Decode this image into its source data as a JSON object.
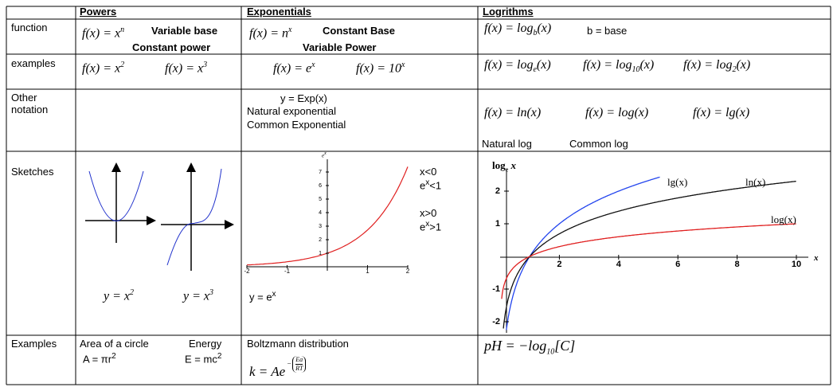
{
  "columns": [
    "Powers",
    "Exponentials",
    "Logrithms"
  ],
  "row_labels": [
    "function",
    "examples",
    "Other notation",
    "Sketches",
    "Examples"
  ],
  "function": {
    "powers": {
      "formula": [
        "f(x) = x",
        "n"
      ],
      "notes": [
        "Variable base",
        "Constant power"
      ]
    },
    "exponentials": {
      "formula": [
        "f(x) = n",
        "x"
      ],
      "notes": [
        "Constant Base",
        "Variable Power"
      ]
    },
    "logarithms": {
      "formula": [
        "f(x) = log",
        "b",
        "(x)"
      ],
      "note": "b = base"
    }
  },
  "examples": {
    "powers": [
      [
        "f(x) = x",
        "2"
      ],
      [
        "f(x) = x",
        "3"
      ]
    ],
    "exponentials": [
      [
        "f(x) = e",
        "x"
      ],
      [
        "f(x) = 10",
        "x"
      ]
    ],
    "logarithms": [
      [
        "f(x) = log",
        "e",
        "(x)"
      ],
      [
        "f(x) = log",
        "10",
        "(x)"
      ],
      [
        "f(x) = log",
        "2",
        "(x)"
      ]
    ]
  },
  "other_notation": {
    "exponentials": [
      "y = Exp(x)",
      "Natural exponential",
      "Common Exponential"
    ],
    "logarithms": {
      "formulas": [
        "f(x) = ln(x)",
        "f(x) = log(x)",
        "f(x) = lg(x)"
      ],
      "labels": [
        "Natural log",
        "Common log"
      ]
    }
  },
  "sketches": {
    "powers": {
      "captions": [
        [
          "y = x",
          "2"
        ],
        [
          "y = x",
          "3"
        ]
      ]
    },
    "exponentials": {
      "axis_label": [
        "e",
        "x"
      ],
      "yticks": [
        1,
        2,
        3,
        4,
        5,
        6,
        7
      ],
      "xticks": [
        -2,
        -1,
        1,
        2
      ],
      "notes": [
        "x<0",
        [
          "e",
          "x",
          "<1"
        ],
        "x>0",
        [
          "e",
          "x",
          ">1"
        ]
      ],
      "caption": [
        "y = e",
        "x"
      ]
    },
    "logarithms": {
      "axis_label": [
        "log",
        "e",
        " x"
      ],
      "yticks": [
        -2,
        -1,
        1,
        2
      ],
      "xticks": [
        2,
        4,
        6,
        8,
        10
      ],
      "x_label": "x",
      "curves": [
        "lg(x)",
        "ln(x)",
        "log(x)"
      ]
    }
  },
  "applications": {
    "powers": {
      "labels": [
        "Area of a circle",
        "Energy"
      ],
      "formulas": [
        [
          "A = πr",
          "2"
        ],
        [
          "E = mc",
          "2"
        ]
      ]
    },
    "exponentials": {
      "label": "Boltzmann distribution",
      "formula": [
        "k = Ae",
        "−",
        "Ea",
        "RT"
      ]
    },
    "logarithms": {
      "formula": [
        "pH = −log",
        "10",
        "[C]"
      ]
    }
  }
}
